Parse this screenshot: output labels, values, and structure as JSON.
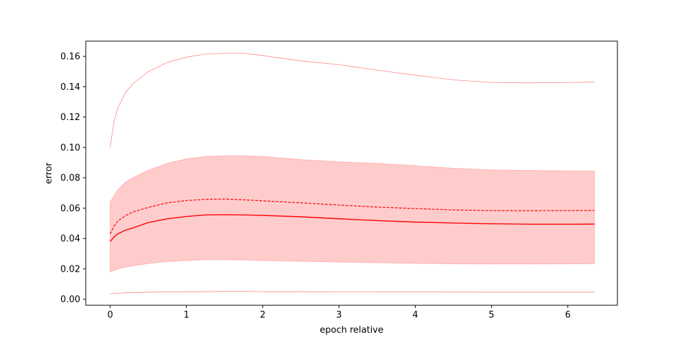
{
  "chart_data": {
    "type": "line",
    "title": "",
    "xlabel": "epoch relative",
    "ylabel": "error",
    "xlim": [
      -0.32,
      6.65
    ],
    "ylim": [
      -0.004,
      0.17
    ],
    "xticks": [
      "0",
      "1",
      "2",
      "3",
      "4",
      "5",
      "6"
    ],
    "yticks": [
      "0.00",
      "0.02",
      "0.04",
      "0.06",
      "0.08",
      "0.10",
      "0.12",
      "0.14",
      "0.16"
    ],
    "grid": false,
    "legend": "none",
    "color": "#ff0000",
    "x": [
      0,
      0.05,
      0.1,
      0.2,
      0.3,
      0.5,
      0.75,
      1.0,
      1.25,
      1.5,
      1.75,
      2.0,
      2.5,
      3.0,
      3.5,
      4.0,
      4.5,
      5.0,
      5.5,
      6.0,
      6.35
    ],
    "series": [
      {
        "role": "mean",
        "style": "solid",
        "values": [
          0.038,
          0.041,
          0.043,
          0.0455,
          0.047,
          0.0505,
          0.053,
          0.0545,
          0.0555,
          0.0557,
          0.0555,
          0.0552,
          0.0543,
          0.053,
          0.0518,
          0.0508,
          0.0502,
          0.0497,
          0.0494,
          0.0494,
          0.0495
        ]
      },
      {
        "role": "mean-dashed",
        "style": "dashed",
        "values": [
          0.043,
          0.048,
          0.0515,
          0.055,
          0.0575,
          0.0605,
          0.0635,
          0.065,
          0.0658,
          0.066,
          0.0655,
          0.0648,
          0.0635,
          0.062,
          0.0607,
          0.0597,
          0.0588,
          0.0584,
          0.0583,
          0.0584,
          0.0585
        ]
      },
      {
        "role": "band-upper",
        "values": [
          0.064,
          0.068,
          0.072,
          0.077,
          0.08,
          0.085,
          0.0895,
          0.0925,
          0.094,
          0.0945,
          0.0945,
          0.094,
          0.092,
          0.0905,
          0.0895,
          0.088,
          0.0862,
          0.0852,
          0.0848,
          0.0845,
          0.0845
        ]
      },
      {
        "role": "band-lower",
        "values": [
          0.018,
          0.019,
          0.02,
          0.021,
          0.022,
          0.0235,
          0.0248,
          0.0255,
          0.026,
          0.026,
          0.0258,
          0.0255,
          0.025,
          0.0245,
          0.024,
          0.0236,
          0.0233,
          0.0232,
          0.0232,
          0.0233,
          0.0234
        ]
      },
      {
        "role": "max",
        "values": [
          0.1,
          0.117,
          0.126,
          0.136,
          0.142,
          0.15,
          0.156,
          0.1595,
          0.1615,
          0.162,
          0.162,
          0.1605,
          0.157,
          0.1545,
          0.151,
          0.1475,
          0.1445,
          0.1428,
          0.1425,
          0.1428,
          0.143
        ]
      },
      {
        "role": "min",
        "values": [
          0.0035,
          0.0038,
          0.004,
          0.0042,
          0.0044,
          0.0046,
          0.0048,
          0.005,
          0.005,
          0.0051,
          0.0051,
          0.005,
          0.005,
          0.0049,
          0.0049,
          0.0048,
          0.0047,
          0.0046,
          0.0046,
          0.0046,
          0.0046
        ]
      }
    ]
  }
}
